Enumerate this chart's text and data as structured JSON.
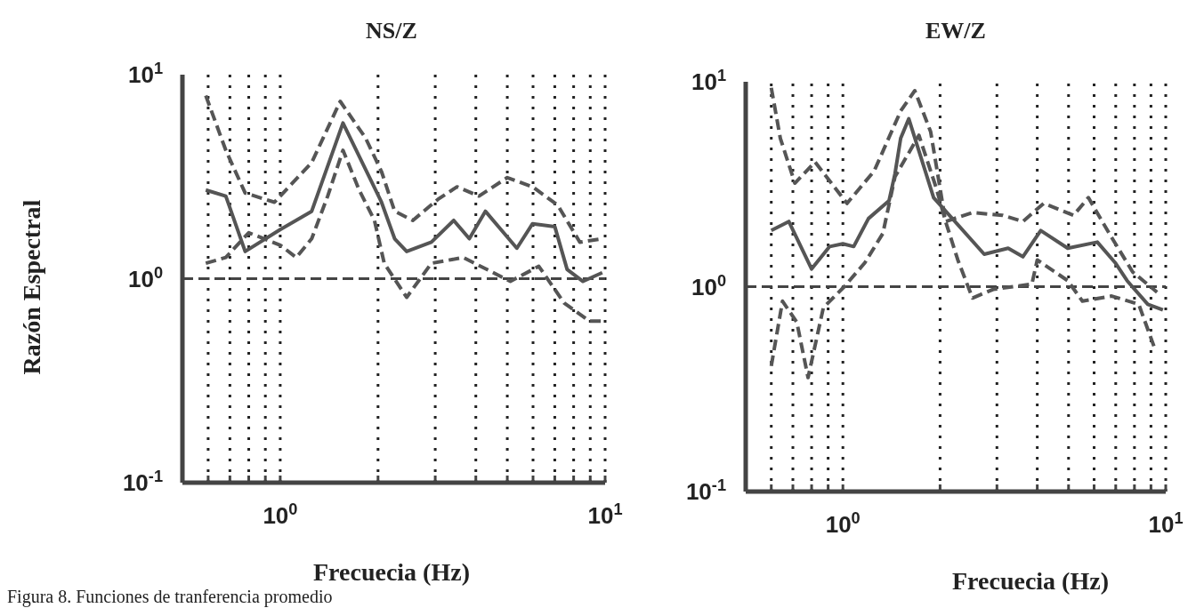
{
  "chart_data": [
    {
      "type": "line",
      "title": "NS/Z",
      "xlabel": "Frecuecia (Hz)",
      "ylabel": "Razón Espectral",
      "log": "xy",
      "grid": "x",
      "xlim": [
        0.5,
        10
      ],
      "ylim": [
        0.1,
        10
      ],
      "xticks": [
        {
          "value": 0.6,
          "label": null
        },
        {
          "value": 0.7,
          "label": null
        },
        {
          "value": 0.8,
          "label": null
        },
        {
          "value": 0.9,
          "label": null
        },
        {
          "value": 1,
          "label": "10$^{0}$"
        },
        {
          "value": 2,
          "label": null
        },
        {
          "value": 3,
          "label": null
        },
        {
          "value": 4,
          "label": null
        },
        {
          "value": 5,
          "label": null
        },
        {
          "value": 6,
          "label": null
        },
        {
          "value": 7,
          "label": null
        },
        {
          "value": 8,
          "label": null
        },
        {
          "value": 9,
          "label": null
        },
        {
          "value": 10,
          "label": "10$^{1}$"
        }
      ],
      "yticks": [
        {
          "value": 0.1,
          "label": "10$^{-1}$"
        },
        {
          "value": 1,
          "label": "10$^{0}$"
        },
        {
          "value": 10,
          "label": "10$^{1}$"
        }
      ],
      "ref_lines": [
        {
          "axis": "y",
          "value": 1,
          "color": "#444444",
          "line_style": "dashed"
        }
      ],
      "series": [
        {
          "color": "#555555",
          "line_style": "solid",
          "x": [
            0.59,
            0.68,
            0.78,
            1,
            1.25,
            1.56,
            2.05,
            2.25,
            2.45,
            2.92,
            3.42,
            3.82,
            4.28,
            5.35,
            5.98,
            7.0,
            7.64,
            8.55,
            9.8
          ],
          "values": [
            2.72,
            2.54,
            1.36,
            1.74,
            2.14,
            5.8,
            2.37,
            1.57,
            1.36,
            1.51,
            1.93,
            1.57,
            2.14,
            1.41,
            1.86,
            1.8,
            1.11,
            0.97,
            1.07
          ]
        },
        {
          "color": "#555555",
          "line_style": "dashed",
          "x": [
            0.59,
            0.68,
            0.78,
            0.96,
            1.25,
            1.53,
            1.83,
            2.05,
            2.25,
            2.56,
            3.06,
            3.5,
            4.09,
            5.0,
            5.98,
            7.15,
            8.36,
            9.8
          ],
          "values": [
            7.9,
            4.26,
            2.63,
            2.37,
            3.71,
            7.4,
            4.9,
            3.35,
            2.14,
            1.93,
            2.45,
            2.82,
            2.54,
            3.13,
            2.82,
            2.29,
            1.51,
            1.57
          ]
        },
        {
          "color": "#555555",
          "line_style": "dashed",
          "x": [
            0.59,
            0.68,
            0.8,
            1,
            1.12,
            1.25,
            1.4,
            1.56,
            1.75,
            1.95,
            2.09,
            2.45,
            2.92,
            3.66,
            5.11,
            6.25,
            7.48,
            8.94,
            10
          ],
          "values": [
            1.19,
            1.27,
            1.68,
            1.46,
            1.27,
            1.57,
            2.54,
            4.26,
            2.72,
            1.93,
            1.19,
            0.81,
            1.19,
            1.27,
            0.97,
            1.15,
            0.76,
            0.62,
            0.62
          ]
        }
      ],
      "annotations": [
        "Figura 8. Funciones de tranferencia promedio"
      ]
    },
    {
      "type": "line",
      "title": "EW/Z",
      "xlabel": "Frecuecia (Hz)",
      "log": "xy",
      "grid": "x",
      "xlim": [
        0.5,
        10
      ],
      "ylim": [
        0.1,
        10
      ],
      "xticks": [
        {
          "value": 0.6,
          "label": null
        },
        {
          "value": 0.7,
          "label": null
        },
        {
          "value": 0.8,
          "label": null
        },
        {
          "value": 0.9,
          "label": null
        },
        {
          "value": 1,
          "label": "10$^{0}$"
        },
        {
          "value": 2,
          "label": null
        },
        {
          "value": 3,
          "label": null
        },
        {
          "value": 4,
          "label": null
        },
        {
          "value": 5,
          "label": null
        },
        {
          "value": 6,
          "label": null
        },
        {
          "value": 7,
          "label": null
        },
        {
          "value": 8,
          "label": null
        },
        {
          "value": 9,
          "label": null
        },
        {
          "value": 10,
          "label": "10$^{1}$"
        }
      ],
      "yticks": [
        {
          "value": 0.1,
          "label": "10$^{-1}$"
        },
        {
          "value": 1,
          "label": "10$^{0}$"
        },
        {
          "value": 10,
          "label": "10$^{1}$"
        }
      ],
      "ref_lines": [
        {
          "axis": "y",
          "value": 1,
          "color": "#444444",
          "line_style": "dashed"
        }
      ],
      "series": [
        {
          "color": "#555555",
          "line_style": "solid",
          "x": [
            0.6,
            0.68,
            0.8,
            0.91,
            1.0,
            1.08,
            1.2,
            1.39,
            1.45,
            1.51,
            1.6,
            1.91,
            2.74,
            3.25,
            3.61,
            4.1,
            4.97,
            6.14,
            6.97,
            7.59,
            8.8,
            9.8
          ],
          "values": [
            1.88,
            2.08,
            1.22,
            1.57,
            1.62,
            1.57,
            2.15,
            2.63,
            3.56,
            5.3,
            6.6,
            2.72,
            1.44,
            1.54,
            1.4,
            1.88,
            1.54,
            1.65,
            1.31,
            1.07,
            0.82,
            0.77
          ]
        },
        {
          "color": "#555555",
          "line_style": "dashed",
          "x": [
            0.6,
            0.64,
            0.71,
            0.82,
            1.03,
            1.25,
            1.51,
            1.67,
            1.87,
            2.08,
            2.52,
            3.12,
            3.61,
            4.19,
            5.18,
            5.76,
            6.68,
            7.9,
            9.4
          ],
          "values": [
            9.35,
            5.3,
            3.2,
            4.06,
            2.55,
            3.67,
            7.2,
            9.05,
            5.7,
            2.08,
            2.3,
            2.23,
            2.08,
            2.55,
            2.23,
            2.72,
            1.82,
            1.18,
            0.94
          ]
        },
        {
          "color": "#555555",
          "line_style": "dashed",
          "x": [
            0.6,
            0.65,
            0.72,
            0.78,
            0.87,
            1.01,
            1.17,
            1.33,
            1.45,
            1.72,
            1.95,
            2.08,
            2.27,
            2.52,
            2.92,
            3.85,
            4.0,
            4.97,
            5.52,
            6.8,
            8.25,
            9.2
          ],
          "values": [
            0.41,
            0.85,
            0.67,
            0.36,
            0.79,
            1.0,
            1.31,
            1.82,
            3.44,
            5.48,
            3.0,
            2.08,
            1.35,
            0.88,
            0.97,
            1.03,
            1.35,
            1.07,
            0.85,
            0.9,
            0.82,
            0.51
          ]
        }
      ]
    }
  ]
}
